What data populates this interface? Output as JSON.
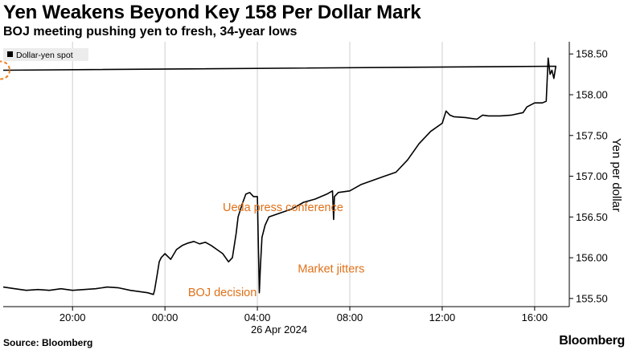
{
  "title": "Yen Weakens Beyond Key 158 Per Dollar Mark",
  "subtitle": "BOJ meeting pushing yen to fresh, 34-year lows",
  "source": "Source: Bloomberg",
  "brand": "Bloomberg",
  "chart_data": {
    "type": "line",
    "ylabel": "Yen per dollar",
    "ylim": [
      155.4,
      158.65
    ],
    "y_ticks": [
      "155.50",
      "156.00",
      "156.50",
      "157.00",
      "157.50",
      "158.00",
      "158.50"
    ],
    "x_ticks": [
      "20:00",
      "00:00",
      "04:00",
      "08:00",
      "12:00",
      "16:00"
    ],
    "x_date_label": "26 Apr 2024",
    "legend": {
      "label": "Dollar-yen spot",
      "position": "top-left"
    },
    "grid": "vertical",
    "annotations": [
      {
        "text": "Ueda press conference",
        "x": "02:30",
        "y": 156.57
      },
      {
        "text": "BOJ decision",
        "x": "01:00",
        "y": 155.53
      },
      {
        "text": "Market jitters",
        "x": "05:45",
        "y": 155.82
      }
    ],
    "highlight": {
      "x": "17:00",
      "y": 158.3,
      "color": "#f07d1a"
    },
    "series": [
      {
        "name": "Dollar-yen spot",
        "color": "#000000",
        "x": [
          "17:00",
          "17:30",
          "18:00",
          "18:30",
          "19:00",
          "19:30",
          "20:00",
          "20:30",
          "21:00",
          "21:30",
          "22:00",
          "22:30",
          "23:00",
          "23:15",
          "23:30",
          "23:33",
          "23:40",
          "23:45",
          "23:50",
          "00:00",
          "00:15",
          "00:30",
          "00:45",
          "01:00",
          "01:15",
          "01:30",
          "01:45",
          "02:00",
          "02:15",
          "02:30",
          "02:45",
          "02:55",
          "03:05",
          "03:10",
          "03:20",
          "03:30",
          "03:40",
          "03:50",
          "04:00",
          "04:05",
          "04:08",
          "04:12",
          "04:20",
          "04:30",
          "05:00",
          "05:30",
          "06:00",
          "06:30",
          "07:00",
          "07:15",
          "07:18",
          "07:20",
          "07:30",
          "08:00",
          "08:30",
          "09:00",
          "09:30",
          "10:00",
          "10:30",
          "11:00",
          "11:30",
          "12:00",
          "12:10",
          "12:20",
          "12:30",
          "13:00",
          "13:30",
          "13:45",
          "14:00",
          "14:30",
          "15:00",
          "15:30",
          "15:40",
          "16:00",
          "16:20",
          "16:30",
          "16:35",
          "16:40",
          "16:45",
          "16:50",
          "16:55",
          "17:00"
        ],
        "y": [
          155.64,
          155.62,
          155.6,
          155.61,
          155.6,
          155.62,
          155.6,
          155.61,
          155.62,
          155.64,
          155.63,
          155.6,
          155.58,
          155.57,
          155.55,
          155.6,
          155.8,
          155.95,
          156.0,
          156.05,
          155.98,
          156.1,
          156.15,
          156.18,
          156.2,
          156.17,
          156.19,
          156.15,
          156.1,
          156.05,
          155.95,
          156.0,
          156.3,
          156.5,
          156.65,
          156.78,
          156.8,
          156.75,
          156.75,
          155.57,
          155.9,
          156.25,
          156.4,
          156.5,
          156.55,
          156.6,
          156.68,
          156.72,
          156.78,
          156.82,
          156.47,
          156.75,
          156.8,
          156.82,
          156.9,
          156.95,
          157.0,
          157.05,
          157.2,
          157.4,
          157.55,
          157.65,
          157.8,
          157.75,
          157.73,
          157.72,
          157.7,
          157.75,
          157.74,
          157.74,
          157.75,
          157.78,
          157.85,
          157.9,
          157.9,
          157.92,
          158.45,
          158.25,
          158.3,
          158.2,
          158.35,
          158.3
        ]
      }
    ]
  }
}
